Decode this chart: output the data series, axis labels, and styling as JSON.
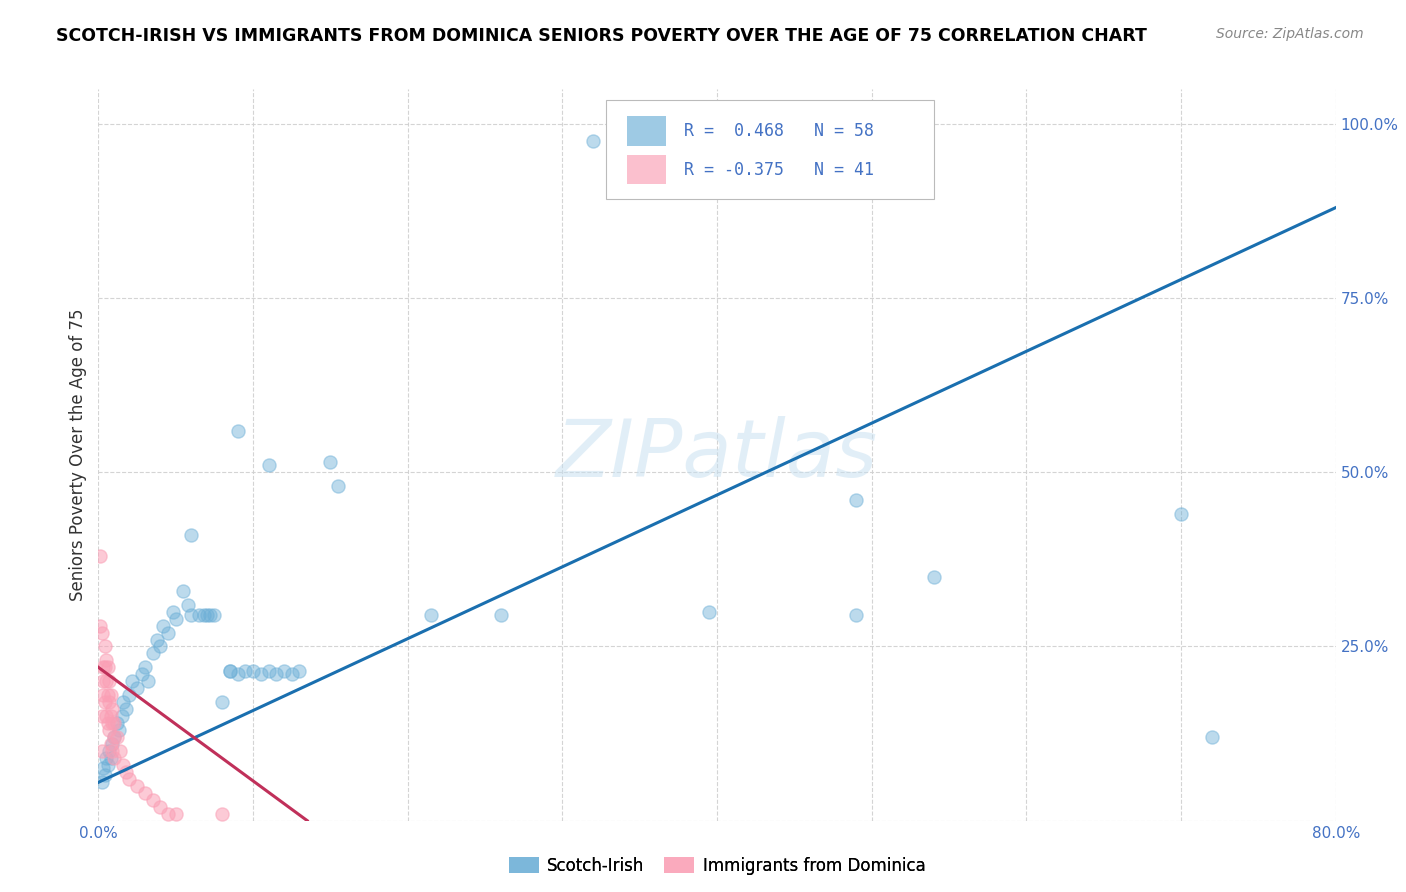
{
  "title": "SCOTCH-IRISH VS IMMIGRANTS FROM DOMINICA SENIORS POVERTY OVER THE AGE OF 75 CORRELATION CHART",
  "source": "Source: ZipAtlas.com",
  "ylabel": "Seniors Poverty Over the Age of 75",
  "xmin": 0.0,
  "xmax": 0.8,
  "ymin": 0.0,
  "ymax": 1.05,
  "xticks": [
    0.0,
    0.1,
    0.2,
    0.3,
    0.4,
    0.5,
    0.6,
    0.7,
    0.8
  ],
  "xticklabels": [
    "0.0%",
    "",
    "",
    "",
    "",
    "",
    "",
    "",
    "80.0%"
  ],
  "yticks": [
    0.0,
    0.25,
    0.5,
    0.75,
    1.0
  ],
  "yticklabels": [
    "",
    "25.0%",
    "50.0%",
    "75.0%",
    "100.0%"
  ],
  "blue_color": "#6baed6",
  "pink_color": "#fa9fb5",
  "trendline_blue": "#1a6faf",
  "trendline_pink": "#c0305a",
  "blue_scatter": [
    [
      0.002,
      0.055
    ],
    [
      0.003,
      0.075
    ],
    [
      0.004,
      0.065
    ],
    [
      0.005,
      0.09
    ],
    [
      0.006,
      0.08
    ],
    [
      0.007,
      0.1
    ],
    [
      0.008,
      0.09
    ],
    [
      0.009,
      0.11
    ],
    [
      0.01,
      0.12
    ],
    [
      0.012,
      0.14
    ],
    [
      0.013,
      0.13
    ],
    [
      0.015,
      0.15
    ],
    [
      0.016,
      0.17
    ],
    [
      0.018,
      0.16
    ],
    [
      0.02,
      0.18
    ],
    [
      0.022,
      0.2
    ],
    [
      0.025,
      0.19
    ],
    [
      0.028,
      0.21
    ],
    [
      0.03,
      0.22
    ],
    [
      0.032,
      0.2
    ],
    [
      0.035,
      0.24
    ],
    [
      0.038,
      0.26
    ],
    [
      0.04,
      0.25
    ],
    [
      0.042,
      0.28
    ],
    [
      0.045,
      0.27
    ],
    [
      0.048,
      0.3
    ],
    [
      0.05,
      0.29
    ],
    [
      0.055,
      0.33
    ],
    [
      0.058,
      0.31
    ],
    [
      0.06,
      0.295
    ],
    [
      0.065,
      0.295
    ],
    [
      0.068,
      0.295
    ],
    [
      0.07,
      0.295
    ],
    [
      0.072,
      0.295
    ],
    [
      0.075,
      0.295
    ],
    [
      0.08,
      0.17
    ],
    [
      0.085,
      0.215
    ],
    [
      0.085,
      0.215
    ],
    [
      0.09,
      0.21
    ],
    [
      0.095,
      0.215
    ],
    [
      0.1,
      0.215
    ],
    [
      0.105,
      0.21
    ],
    [
      0.11,
      0.215
    ],
    [
      0.115,
      0.21
    ],
    [
      0.12,
      0.215
    ],
    [
      0.125,
      0.21
    ],
    [
      0.13,
      0.215
    ],
    [
      0.06,
      0.41
    ],
    [
      0.09,
      0.56
    ],
    [
      0.11,
      0.51
    ],
    [
      0.15,
      0.515
    ],
    [
      0.155,
      0.48
    ],
    [
      0.215,
      0.295
    ],
    [
      0.26,
      0.295
    ],
    [
      0.395,
      0.3
    ],
    [
      0.49,
      0.295
    ],
    [
      0.49,
      0.46
    ],
    [
      0.54,
      0.35
    ],
    [
      0.7,
      0.44
    ],
    [
      0.72,
      0.12
    ]
  ],
  "pink_scatter": [
    [
      0.001,
      0.38
    ],
    [
      0.001,
      0.28
    ],
    [
      0.002,
      0.27
    ],
    [
      0.002,
      0.15
    ],
    [
      0.002,
      0.1
    ],
    [
      0.003,
      0.2
    ],
    [
      0.003,
      0.22
    ],
    [
      0.003,
      0.18
    ],
    [
      0.004,
      0.25
    ],
    [
      0.004,
      0.22
    ],
    [
      0.004,
      0.17
    ],
    [
      0.005,
      0.23
    ],
    [
      0.005,
      0.2
    ],
    [
      0.005,
      0.15
    ],
    [
      0.006,
      0.22
    ],
    [
      0.006,
      0.18
    ],
    [
      0.006,
      0.14
    ],
    [
      0.007,
      0.2
    ],
    [
      0.007,
      0.17
    ],
    [
      0.007,
      0.13
    ],
    [
      0.008,
      0.18
    ],
    [
      0.008,
      0.15
    ],
    [
      0.008,
      0.11
    ],
    [
      0.009,
      0.16
    ],
    [
      0.009,
      0.14
    ],
    [
      0.009,
      0.1
    ],
    [
      0.01,
      0.14
    ],
    [
      0.01,
      0.12
    ],
    [
      0.01,
      0.09
    ],
    [
      0.012,
      0.12
    ],
    [
      0.014,
      0.1
    ],
    [
      0.016,
      0.08
    ],
    [
      0.018,
      0.07
    ],
    [
      0.02,
      0.06
    ],
    [
      0.025,
      0.05
    ],
    [
      0.03,
      0.04
    ],
    [
      0.035,
      0.03
    ],
    [
      0.04,
      0.02
    ],
    [
      0.045,
      0.01
    ],
    [
      0.05,
      0.01
    ],
    [
      0.08,
      0.01
    ]
  ],
  "blue_trendline_x": [
    0.0,
    0.8
  ],
  "blue_trendline_y": [
    0.055,
    0.88
  ],
  "pink_trendline_x": [
    0.0,
    0.135
  ],
  "pink_trendline_y": [
    0.22,
    0.0
  ],
  "top_blue_points_x": [
    0.32,
    0.35,
    0.375
  ],
  "top_blue_points_y": [
    0.975,
    0.975,
    0.975
  ],
  "watermark": "ZIPatlas",
  "background_color": "#ffffff",
  "grid_color": "#d0d0d0",
  "tick_color": "#4472c4",
  "ylabel_color": "#333333",
  "title_fontsize": 12.5,
  "source_fontsize": 10,
  "axis_fontsize": 11,
  "ylabel_fontsize": 12
}
